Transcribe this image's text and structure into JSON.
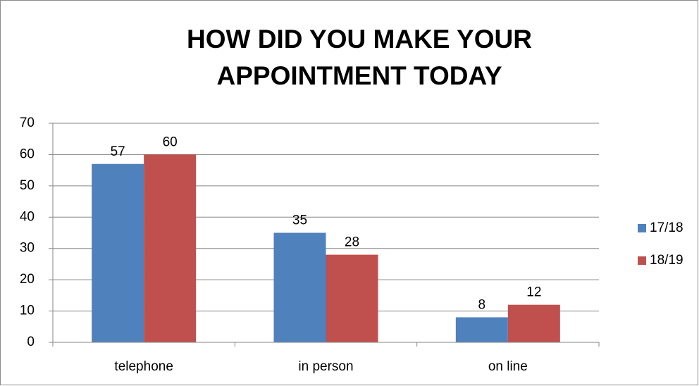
{
  "chart_data": {
    "type": "bar",
    "title": "HOW DID YOU MAKE YOUR APPOINTMENT TODAY",
    "categories": [
      "telephone",
      "in person",
      "on line"
    ],
    "series": [
      {
        "name": "17/18",
        "color": "#4f81bd",
        "values": [
          57,
          35,
          8
        ]
      },
      {
        "name": "18/19",
        "color": "#c0504d",
        "values": [
          60,
          28,
          12
        ]
      }
    ],
    "ylim": [
      0,
      70
    ],
    "yticks": [
      0,
      10,
      20,
      30,
      40,
      50,
      60,
      70
    ],
    "grid": true,
    "legend": "right"
  }
}
